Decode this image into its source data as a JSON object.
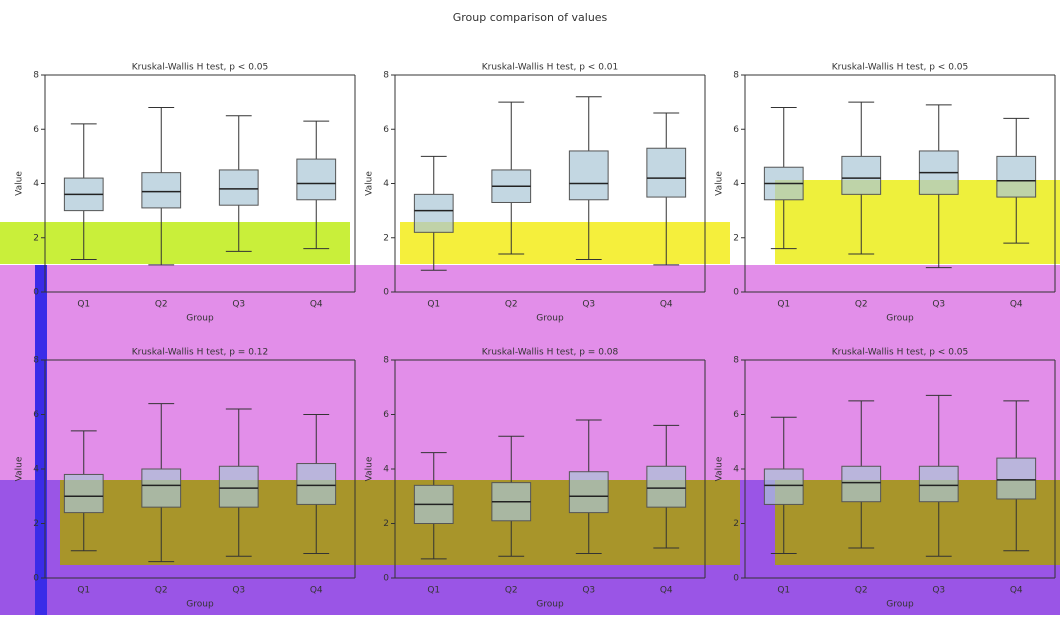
{
  "title": "Group comparison of values",
  "chart_data": [
    {
      "type": "box",
      "title": "Kruskal-Wallis H test, p < 0.05",
      "x_label": "Group",
      "y_label": "Value",
      "categories": [
        "Q1",
        "Q2",
        "Q3",
        "Q4"
      ],
      "color": "#a9c6d6",
      "ylim": [
        0,
        8
      ],
      "yticks": [
        0,
        2,
        4,
        6,
        8
      ],
      "boxes": [
        {
          "whislo": 1.2,
          "q1": 3.0,
          "med": 3.6,
          "q3": 4.2,
          "whishi": 6.2
        },
        {
          "whislo": 1.0,
          "q1": 3.1,
          "med": 3.7,
          "q3": 4.4,
          "whishi": 6.8
        },
        {
          "whislo": 1.5,
          "q1": 3.2,
          "med": 3.8,
          "q3": 4.5,
          "whishi": 6.5
        },
        {
          "whislo": 1.6,
          "q1": 3.4,
          "med": 4.0,
          "q3": 4.9,
          "whishi": 6.3
        }
      ]
    },
    {
      "type": "box",
      "title": "Kruskal-Wallis H test, p < 0.01",
      "x_label": "Group",
      "y_label": "Value",
      "categories": [
        "Q1",
        "Q2",
        "Q3",
        "Q4"
      ],
      "color": "#a9c6d6",
      "ylim": [
        0,
        8
      ],
      "yticks": [
        0,
        2,
        4,
        6,
        8
      ],
      "boxes": [
        {
          "whislo": 0.8,
          "q1": 2.2,
          "med": 3.0,
          "q3": 3.6,
          "whishi": 5.0
        },
        {
          "whislo": 1.4,
          "q1": 3.3,
          "med": 3.9,
          "q3": 4.5,
          "whishi": 7.0
        },
        {
          "whislo": 1.2,
          "q1": 3.4,
          "med": 4.0,
          "q3": 5.2,
          "whishi": 7.2
        },
        {
          "whislo": 1.0,
          "q1": 3.5,
          "med": 4.2,
          "q3": 5.3,
          "whishi": 6.6
        }
      ]
    },
    {
      "type": "box",
      "title": "Kruskal-Wallis H test, p < 0.05",
      "x_label": "Group",
      "y_label": "Value",
      "categories": [
        "Q1",
        "Q2",
        "Q3",
        "Q4"
      ],
      "color": "#a9c6d6",
      "ylim": [
        0,
        8
      ],
      "yticks": [
        0,
        2,
        4,
        6,
        8
      ],
      "boxes": [
        {
          "whislo": 1.6,
          "q1": 3.4,
          "med": 4.0,
          "q3": 4.6,
          "whishi": 6.8
        },
        {
          "whislo": 1.4,
          "q1": 3.6,
          "med": 4.2,
          "q3": 5.0,
          "whishi": 7.0
        },
        {
          "whislo": 0.9,
          "q1": 3.6,
          "med": 4.4,
          "q3": 5.2,
          "whishi": 6.9
        },
        {
          "whislo": 1.8,
          "q1": 3.5,
          "med": 4.1,
          "q3": 5.0,
          "whishi": 6.4
        }
      ]
    },
    {
      "type": "box",
      "title": "Kruskal-Wallis H test, p = 0.12",
      "x_label": "Group",
      "y_label": "Value",
      "categories": [
        "Q1",
        "Q2",
        "Q3",
        "Q4"
      ],
      "color": "#a9c6d6",
      "ylim": [
        0,
        8
      ],
      "yticks": [
        0,
        2,
        4,
        6,
        8
      ],
      "boxes": [
        {
          "whislo": 1.0,
          "q1": 2.4,
          "med": 3.0,
          "q3": 3.8,
          "whishi": 5.4
        },
        {
          "whislo": 0.6,
          "q1": 2.6,
          "med": 3.4,
          "q3": 4.0,
          "whishi": 6.4
        },
        {
          "whislo": 0.8,
          "q1": 2.6,
          "med": 3.3,
          "q3": 4.1,
          "whishi": 6.2
        },
        {
          "whislo": 0.9,
          "q1": 2.7,
          "med": 3.4,
          "q3": 4.2,
          "whishi": 6.0
        }
      ]
    },
    {
      "type": "box",
      "title": "Kruskal-Wallis H test, p = 0.08",
      "x_label": "Group",
      "y_label": "Value",
      "categories": [
        "Q1",
        "Q2",
        "Q3",
        "Q4"
      ],
      "color": "#a9c6d6",
      "ylim": [
        0,
        8
      ],
      "yticks": [
        0,
        2,
        4,
        6,
        8
      ],
      "boxes": [
        {
          "whislo": 0.7,
          "q1": 2.0,
          "med": 2.7,
          "q3": 3.4,
          "whishi": 4.6
        },
        {
          "whislo": 0.8,
          "q1": 2.1,
          "med": 2.8,
          "q3": 3.5,
          "whishi": 5.2
        },
        {
          "whislo": 0.9,
          "q1": 2.4,
          "med": 3.0,
          "q3": 3.9,
          "whishi": 5.8
        },
        {
          "whislo": 1.1,
          "q1": 2.6,
          "med": 3.3,
          "q3": 4.1,
          "whishi": 5.6
        }
      ]
    },
    {
      "type": "box",
      "title": "Kruskal-Wallis H test, p < 0.05",
      "x_label": "Group",
      "y_label": "Value",
      "categories": [
        "Q1",
        "Q2",
        "Q3",
        "Q4"
      ],
      "color": "#a9c6d6",
      "ylim": [
        0,
        8
      ],
      "yticks": [
        0,
        2,
        4,
        6,
        8
      ],
      "boxes": [
        {
          "whislo": 0.9,
          "q1": 2.7,
          "med": 3.4,
          "q3": 4.0,
          "whishi": 5.9
        },
        {
          "whislo": 1.1,
          "q1": 2.8,
          "med": 3.5,
          "q3": 4.1,
          "whishi": 6.5
        },
        {
          "whislo": 0.8,
          "q1": 2.8,
          "med": 3.4,
          "q3": 4.1,
          "whishi": 6.7
        },
        {
          "whislo": 1.0,
          "q1": 2.9,
          "med": 3.6,
          "q3": 4.4,
          "whishi": 6.5
        }
      ]
    }
  ]
}
